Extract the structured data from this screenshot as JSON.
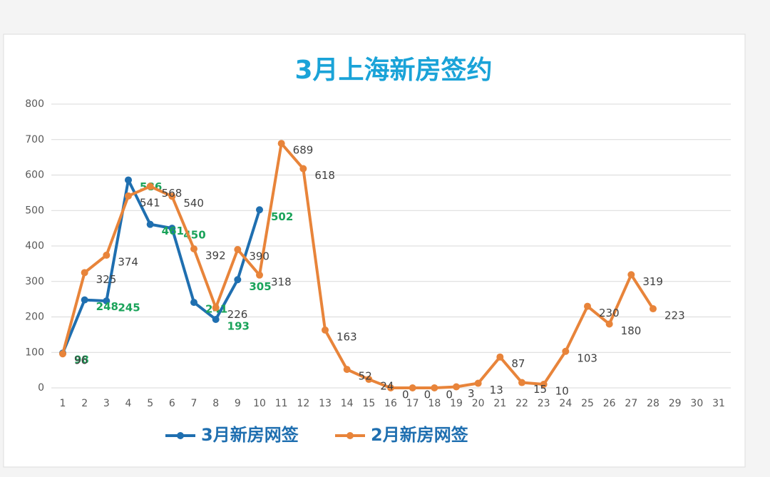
{
  "chart_data": {
    "type": "line",
    "title": "3月上海新房签约",
    "categories": [
      "1",
      "2",
      "3",
      "4",
      "5",
      "6",
      "7",
      "8",
      "9",
      "10",
      "11",
      "12",
      "13",
      "14",
      "15",
      "16",
      "17",
      "18",
      "19",
      "20",
      "21",
      "22",
      "23",
      "24",
      "25",
      "26",
      "27",
      "28",
      "29",
      "30",
      "31"
    ],
    "series": [
      {
        "name": "3月新房网签",
        "color": "#1f6fb0",
        "label_color": "#1aa35a",
        "values": [
          98,
          248,
          245,
          586,
          461,
          450,
          241,
          193,
          305,
          502,
          null,
          null,
          null,
          null,
          null,
          null,
          null,
          null,
          null,
          null,
          null,
          null,
          null,
          null,
          null,
          null,
          null,
          null,
          null,
          null,
          null
        ]
      },
      {
        "name": "2月新房网签",
        "color": "#e8843a",
        "label_color": "#404040",
        "values": [
          96,
          325,
          374,
          541,
          568,
          540,
          392,
          226,
          390,
          318,
          689,
          618,
          163,
          52,
          24,
          0,
          0,
          0,
          3,
          13,
          87,
          15,
          10,
          103,
          230,
          180,
          319,
          223,
          null,
          null,
          null
        ]
      }
    ],
    "ylim": [
      0,
      800
    ],
    "yticks": [
      0,
      100,
      200,
      300,
      400,
      500,
      600,
      700,
      800
    ],
    "grid": true,
    "legend": "bottom"
  }
}
